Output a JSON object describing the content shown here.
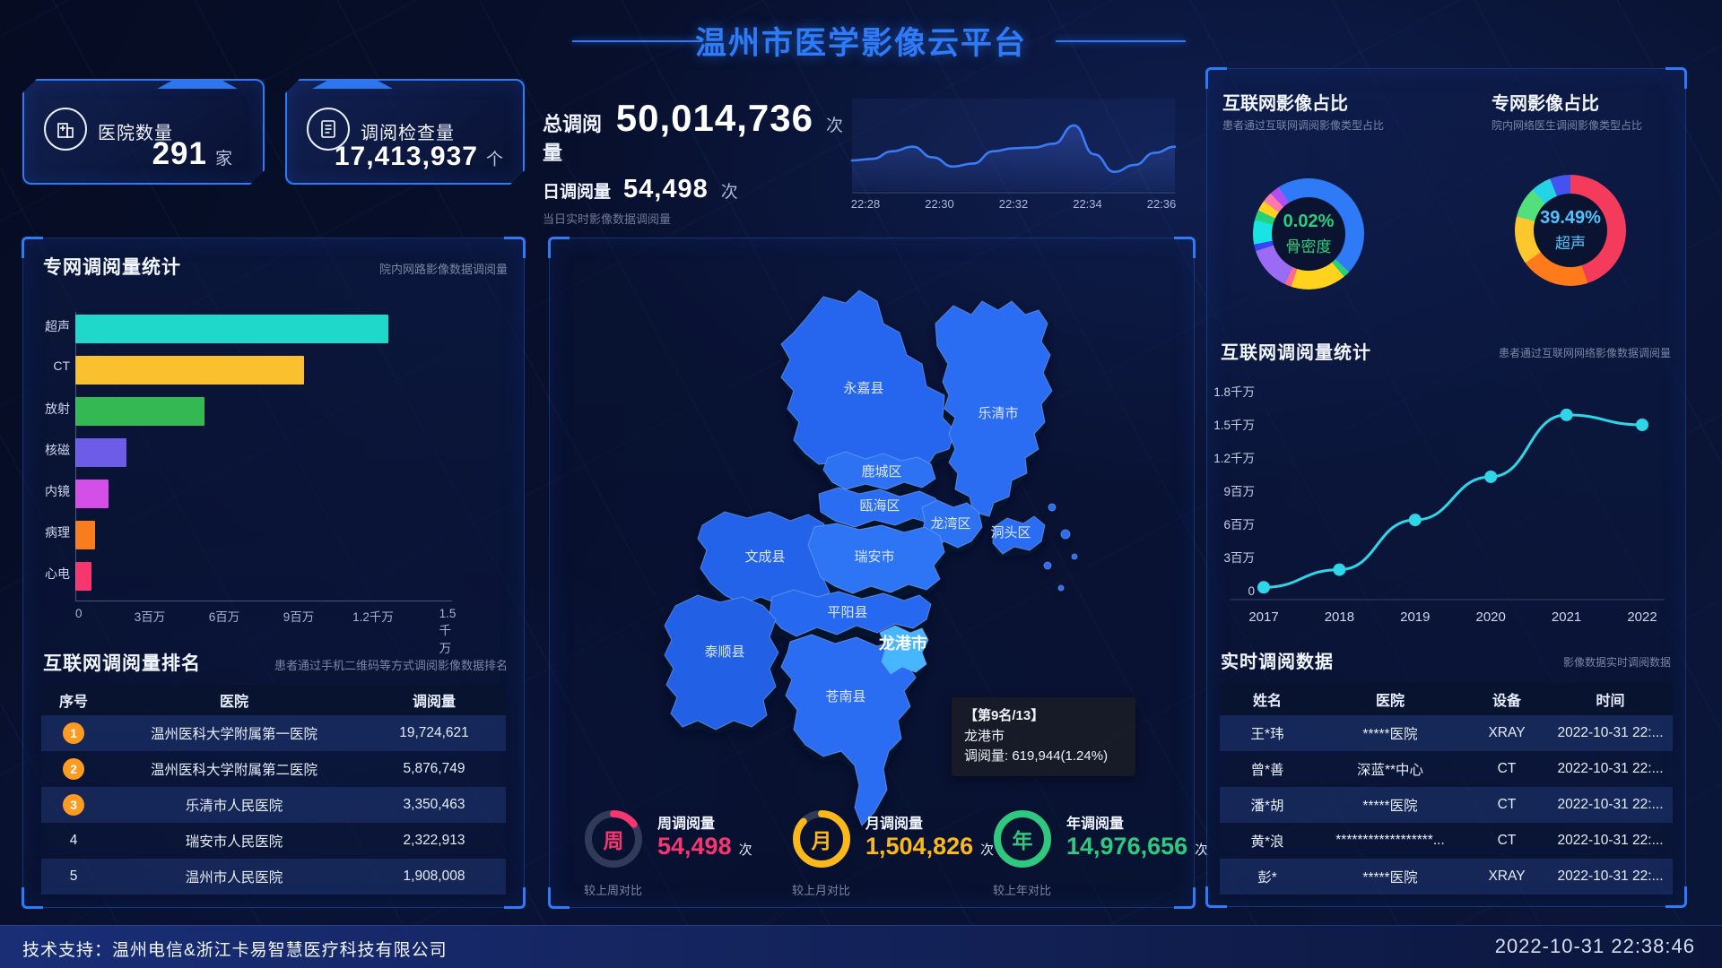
{
  "header": {
    "title": "温州市医学影像云平台"
  },
  "stat_cards": [
    {
      "icon": "hospital-icon",
      "label": "医院数量",
      "value": "291",
      "unit": "家"
    },
    {
      "icon": "report-icon",
      "label": "调阅检查量",
      "value": "17,413,937",
      "unit": "个"
    }
  ],
  "totals": {
    "total_label": "总调阅量",
    "total_value": "50,014,736",
    "total_unit": "次",
    "daily_label": "日调阅量",
    "daily_value": "54,498",
    "daily_unit": "次",
    "daily_note": "当日实时影像数据调阅量"
  },
  "chart_data": [
    {
      "id": "daily-trend",
      "type": "area",
      "x_labels": [
        "22:28",
        "22:30",
        "22:32",
        "22:34",
        "22:36"
      ],
      "values": [
        40,
        42,
        52,
        58,
        44,
        32,
        36,
        52,
        56,
        57,
        62,
        86,
        48,
        25,
        34,
        50,
        58
      ],
      "line_color": "#3b7bf7",
      "ylim": [
        0,
        100
      ]
    },
    {
      "id": "internet-image-share",
      "type": "pie",
      "title": "互联网影像占比",
      "subtitle": "患者通过互联网调阅影像类型占比",
      "center_value": "0.02%",
      "center_label": "骨密度",
      "center_color": "#27d17c",
      "segments": [
        {
          "color": "#2f7bf7",
          "pct": 37
        },
        {
          "color": "#27d17c",
          "pct": 2
        },
        {
          "color": "#ffd21e",
          "pct": 16
        },
        {
          "color": "#ff6b8a",
          "pct": 2
        },
        {
          "color": "#9b6bf3",
          "pct": 13
        },
        {
          "color": "#3646f5",
          "pct": 2
        },
        {
          "color": "#19e3e3",
          "pct": 7
        },
        {
          "color": "#27d17c",
          "pct": 3
        },
        {
          "color": "#ffd21e",
          "pct": 3
        },
        {
          "color": "#ff7aa8",
          "pct": 3
        },
        {
          "color": "#b44df0",
          "pct": 3
        },
        {
          "color": "#2f7bf7",
          "pct": 9
        }
      ]
    },
    {
      "id": "private-image-share",
      "type": "pie",
      "title": "专网影像占比",
      "subtitle": "院内网络医生调阅影像类型占比",
      "center_value": "39.49%",
      "center_label": "超声",
      "center_color": "#4fc3ff",
      "segments": [
        {
          "color": "#f43b5c",
          "pct": 45
        },
        {
          "color": "#ff7a1a",
          "pct": 20
        },
        {
          "color": "#ffc72e",
          "pct": 14
        },
        {
          "color": "#52e07c",
          "pct": 9
        },
        {
          "color": "#24d3e8",
          "pct": 6
        },
        {
          "color": "#4353f0",
          "pct": 6
        }
      ]
    },
    {
      "id": "private-network-stats",
      "type": "bar",
      "title": "专网调阅量统计",
      "subtitle": "院内网路影像数据调阅量",
      "categories": [
        "超声",
        "CT",
        "放射",
        "核磁",
        "内镜",
        "病理",
        "心电"
      ],
      "values": [
        12600000,
        9200000,
        5200000,
        2050000,
        1350000,
        800000,
        650000
      ],
      "colors": [
        "#1fd8c9",
        "#fbc02d",
        "#34b853",
        "#6c5ce7",
        "#d44fe8",
        "#f97d1c",
        "#f5366f"
      ],
      "x_ticks": [
        "0",
        "3百万",
        "6百万",
        "9百万",
        "1.2千万",
        "1.5千万"
      ],
      "xmax": 15000000
    },
    {
      "id": "internet-yearly-stats",
      "type": "line",
      "title": "互联网调阅量统计",
      "subtitle": "患者通过互联网网络影像数据调阅量",
      "x": [
        "2017",
        "2018",
        "2019",
        "2020",
        "2021",
        "2022"
      ],
      "values": [
        300000,
        1900000,
        6400000,
        10300000,
        15900000,
        15000000
      ],
      "y_ticks": [
        "0",
        "3百万",
        "6百万",
        "9百万",
        "1.2千万",
        "1.5千万",
        "1.8千万"
      ],
      "ymax": 18000000,
      "line_color": "#2fd6e8"
    }
  ],
  "ranking": {
    "title": "互联网调阅量排名",
    "subtitle": "患者通过手机二维码等方式调阅影像数据排名",
    "columns": [
      "序号",
      "医院",
      "调阅量"
    ],
    "rows": [
      {
        "rank": "1",
        "hospital": "温州医科大学附属第一医院",
        "value": "19,724,621",
        "badge": true
      },
      {
        "rank": "2",
        "hospital": "温州医科大学附属第二医院",
        "value": "5,876,749",
        "badge": true
      },
      {
        "rank": "3",
        "hospital": "乐清市人民医院",
        "value": "3,350,463",
        "badge": true
      },
      {
        "rank": "4",
        "hospital": "瑞安市人民医院",
        "value": "2,322,913",
        "badge": false
      },
      {
        "rank": "5",
        "hospital": "温州市人民医院",
        "value": "1,908,008",
        "badge": false
      }
    ]
  },
  "map": {
    "districts": [
      "永嘉县",
      "乐清市",
      "鹿城区",
      "瓯海区",
      "龙湾区",
      "洞头区",
      "文成县",
      "瑞安市",
      "平阳县",
      "泰顺县",
      "苍南县",
      "龙港市"
    ],
    "highlighted": "龙港市",
    "tooltip": {
      "rank_line": "【第9名/13】",
      "name": "龙港市",
      "value_line": "调阅量: 619,944(1.24%)"
    }
  },
  "gauges": [
    {
      "char": "周",
      "title": "周调阅量",
      "value": "54,498",
      "unit": "次",
      "note": "较上周对比",
      "color": "#f5366f",
      "pct": 15
    },
    {
      "char": "月",
      "title": "月调阅量",
      "value": "1,504,826",
      "unit": "次",
      "note": "较上月对比",
      "color": "#fbb81b",
      "pct": 87
    },
    {
      "char": "年",
      "title": "年调阅量",
      "value": "14,976,656",
      "unit": "次",
      "note": "较上年对比",
      "color": "#2ec97e",
      "pct": 100
    }
  ],
  "realtime": {
    "title": "实时调阅数据",
    "subtitle": "影像数据实时调阅数据",
    "columns": [
      "姓名",
      "医院",
      "设备",
      "时间"
    ],
    "rows": [
      {
        "name": "王*玮",
        "hospital": "*****医院",
        "device": "XRAY",
        "time": "2022-10-31 22:..."
      },
      {
        "name": "曾*善",
        "hospital": "深蓝**中心",
        "device": "CT",
        "time": "2022-10-31 22:..."
      },
      {
        "name": "潘*胡",
        "hospital": "*****医院",
        "device": "CT",
        "time": "2022-10-31 22:..."
      },
      {
        "name": "黄*浪",
        "hospital": "******************...",
        "device": "CT",
        "time": "2022-10-31 22:..."
      },
      {
        "name": "彭*",
        "hospital": "*****医院",
        "device": "XRAY",
        "time": "2022-10-31 22:..."
      }
    ]
  },
  "footer": {
    "support": "技术支持：温州电信&浙江卡易智慧医疗科技有限公司",
    "timestamp": "2022-10-31 22:38:46"
  },
  "colors": {
    "accent": "#2f7bf7",
    "panel_border": "#2356c8"
  }
}
